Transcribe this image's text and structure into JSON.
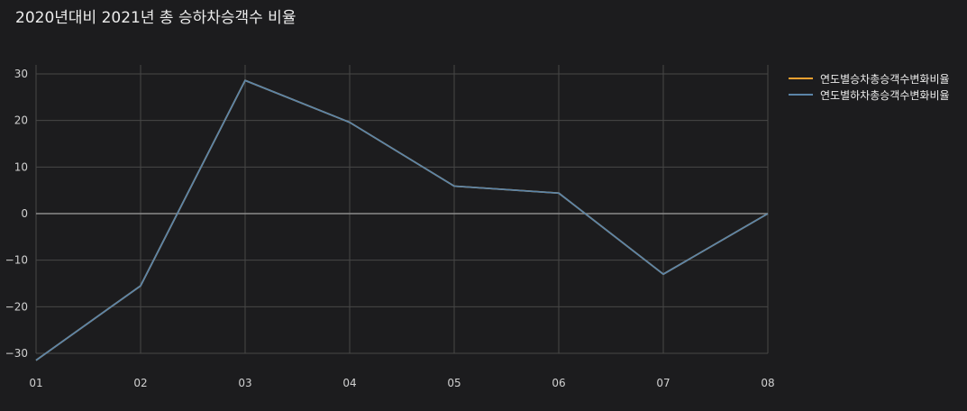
{
  "title": "2020년대비 2021년 총 승하차승객수 비율",
  "colors": {
    "background": "#1c1c1e",
    "grid": "#474747",
    "zero_line": "#8c8c8c",
    "series_boarding": "#f0a030",
    "series_alighting": "#5b84a8"
  },
  "chart_data": {
    "type": "line",
    "title": "2020년대비 2021년 총 승하차승객수 비율",
    "x": [
      "01",
      "02",
      "03",
      "04",
      "05",
      "06",
      "07",
      "08"
    ],
    "ylim": [
      -32,
      32
    ],
    "yticks": [
      -30,
      -20,
      -10,
      0,
      10,
      20,
      30
    ],
    "ytick_labels": [
      "−30",
      "−20",
      "−10",
      "0",
      "10",
      "20",
      "30"
    ],
    "grid": true,
    "legend_position": "top-right",
    "series": [
      {
        "name": "연도별승차총승객수변화비율",
        "color": "#f0a030",
        "values": [
          -31.5,
          -15.5,
          28.6,
          19.6,
          5.9,
          4.4,
          -13.0,
          0.0
        ]
      },
      {
        "name": "연도별하차총승객수변화비율",
        "color": "#5b84a8",
        "values": [
          -31.5,
          -15.5,
          28.6,
          19.6,
          5.9,
          4.4,
          -13.0,
          0.0
        ]
      }
    ]
  }
}
